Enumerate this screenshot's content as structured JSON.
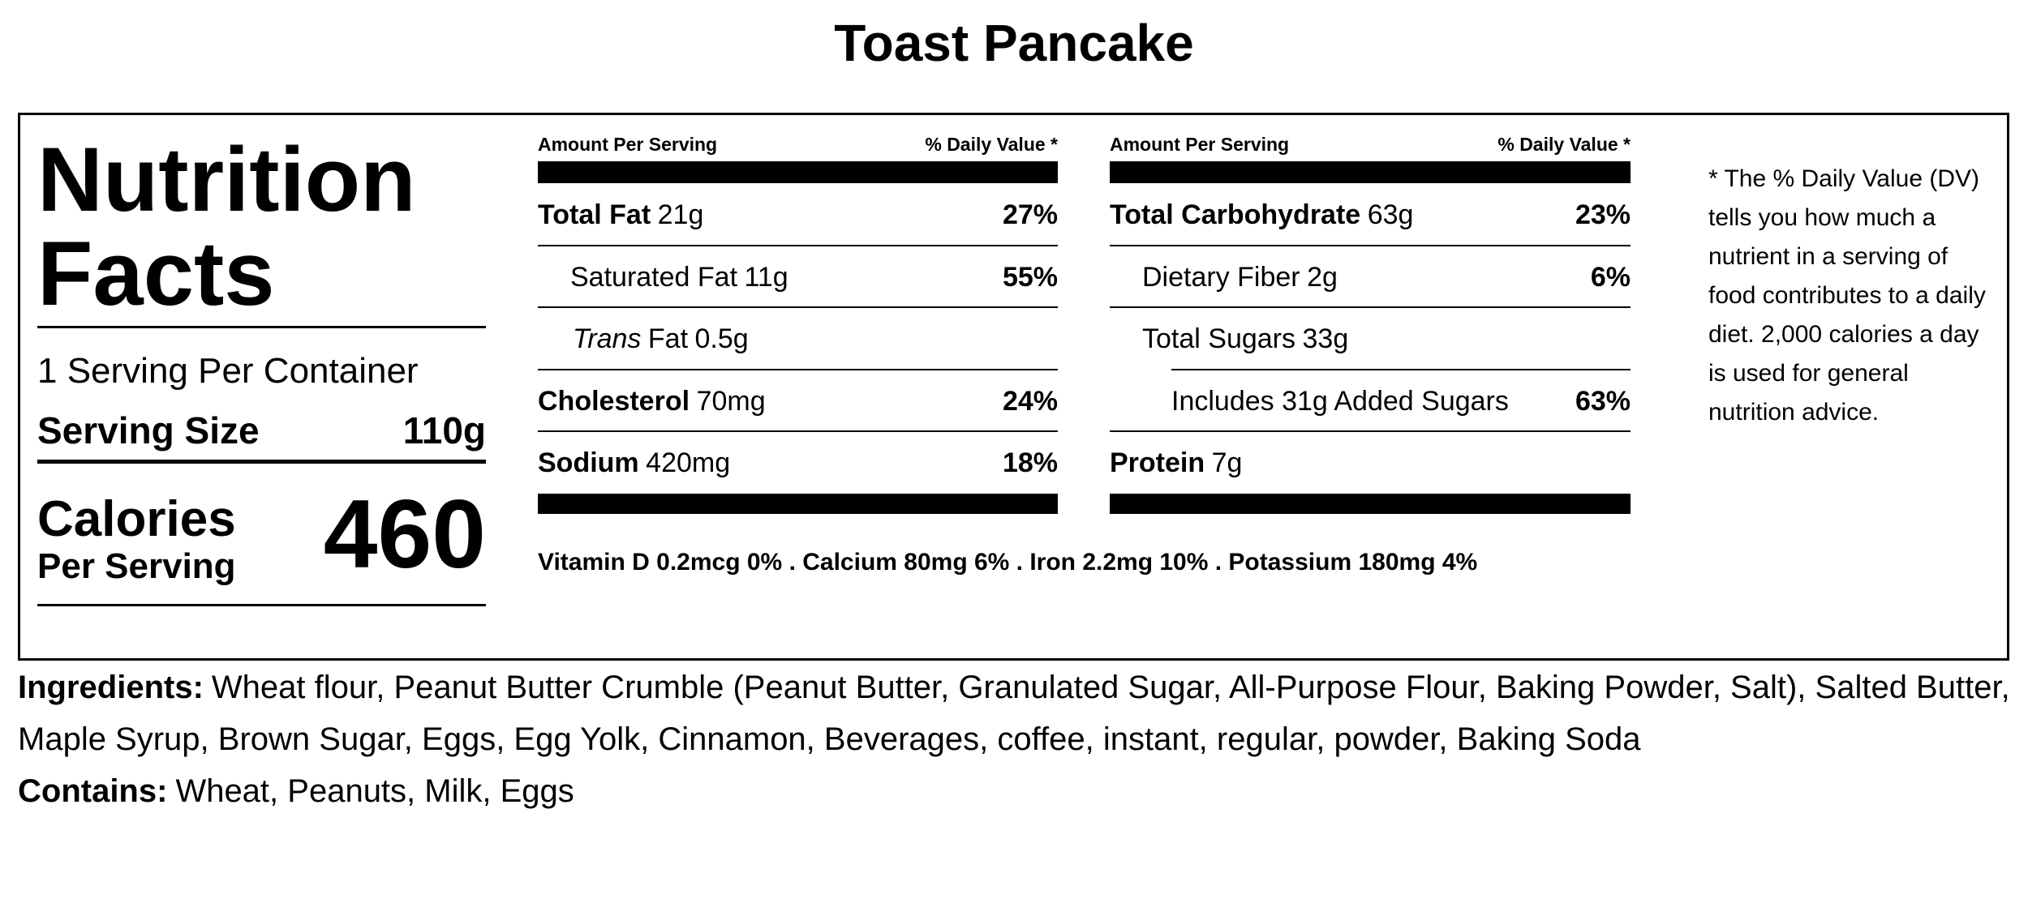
{
  "title": "Toast Pancake",
  "panel": {
    "heading_line1": "Nutrition",
    "heading_line2": "Facts",
    "servings": "1 Serving Per Container",
    "serving_size_label": "Serving Size",
    "serving_size": "110g",
    "calories_label": "Calories",
    "calories_sublabel": "Per Serving",
    "calories": 460
  },
  "columns": [
    {
      "header_left": "Amount Per Serving",
      "header_right": "% Daily Value *",
      "rows": [
        {
          "name": "Total Fat",
          "amount": "21g",
          "dv": "27%"
        },
        {
          "name": "Saturated Fat",
          "amount": "11g",
          "dv": "55%"
        },
        {
          "name_prefix": "Trans",
          "name": "Fat",
          "amount": "0.5g"
        },
        {
          "name": "Cholesterol",
          "amount": "70mg",
          "dv": "24%"
        },
        {
          "name": "Sodium",
          "amount": "420mg",
          "dv": "18%"
        }
      ]
    },
    {
      "header_left": "Amount Per Serving",
      "header_right": "% Daily Value *",
      "rows": [
        {
          "name": "Total Carbohydrate",
          "amount": "63g",
          "dv": "23%"
        },
        {
          "name": "Dietary Fiber",
          "amount": "2g",
          "dv": "6%"
        },
        {
          "name": "Total Sugars",
          "amount": "33g"
        },
        {
          "name": "Includes 31g Added Sugars",
          "dv": "63%"
        },
        {
          "name": "Protein",
          "amount": "7g"
        }
      ]
    }
  ],
  "vitamins": "Vitamin D 0.2mcg 0% . Calcium 80mg 6% . Iron 2.2mg 10% . Potassium 180mg 4%",
  "footnote": "* The % Daily Value (DV) tells you how much a nutrient in a serving of food contributes to a daily diet. 2,000 calories a day is used for general nutrition advice.",
  "ingredients": {
    "label": "Ingredients:",
    "text": "Wheat flour, Peanut Butter Crumble (Peanut Butter, Granulated Sugar, All-Purpose Flour, Baking Powder, Salt), Salted Butter, Maple Syrup, Brown Sugar, Eggs, Egg Yolk, Cinnamon, Beverages, coffee, instant, regular, powder, Baking Soda"
  },
  "contains": {
    "label": "Contains:",
    "text": "Wheat, Peanuts, Milk, Eggs"
  }
}
